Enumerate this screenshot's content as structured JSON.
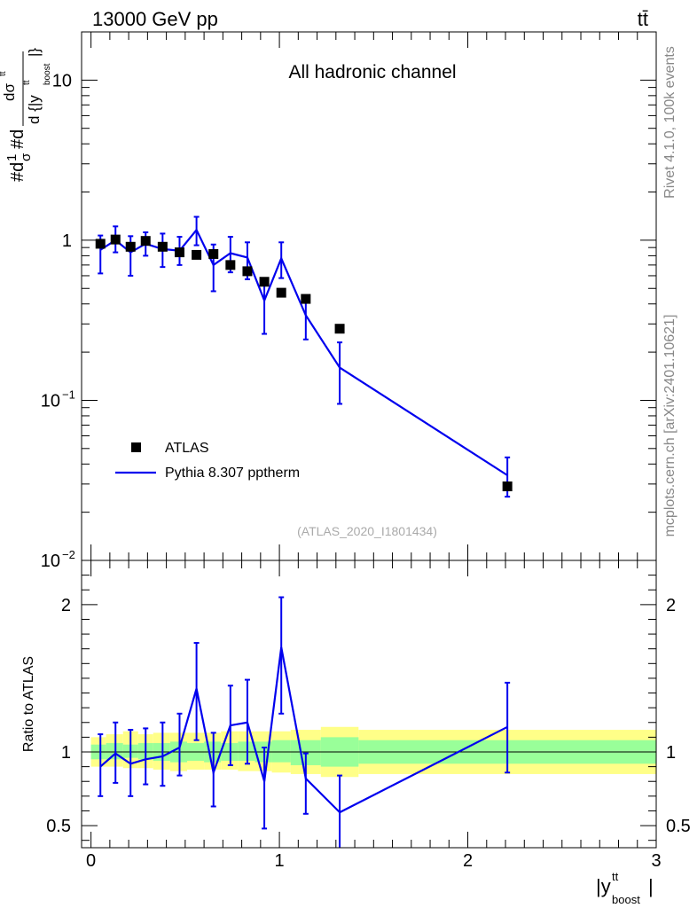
{
  "header": {
    "energy_label": "13000 GeV pp",
    "process_label": "tt̄"
  },
  "side_labels": {
    "rivet": "Rivet 4.1.0,  100k events",
    "mcplots": "mcplots.cern.ch [arXiv:2401.10621]"
  },
  "chart_data": [
    {
      "type": "scatter+line",
      "panel": "main",
      "title": "All hadronic channel",
      "analysis_id": "(ATLAS_2020_I1801434)",
      "ylabel_parts": [
        "#d",
        "1",
        "σ",
        "#d",
        "dσ",
        "tt",
        "d {|y",
        "tt",
        "boost",
        "|}"
      ],
      "xlabel": "|y^tt_boost|",
      "yscale": "log",
      "ylim": [
        0.01,
        20
      ],
      "xlim": [
        -0.05,
        3.0
      ],
      "y_ticks": [
        {
          "value": 0.01,
          "label": "10",
          "exp": "−2"
        },
        {
          "value": 0.1,
          "label": "10",
          "exp": "−1"
        },
        {
          "value": 1,
          "label": "1",
          "exp": ""
        },
        {
          "value": 10,
          "label": "10",
          "exp": ""
        }
      ],
      "legend": {
        "position": "lower-left",
        "entries": [
          {
            "name": "ATLAS",
            "marker": "square",
            "color": "#000000"
          },
          {
            "name": "Pythia 8.307 pptherm",
            "marker": "line",
            "color": "#0000ee"
          }
        ]
      },
      "data": {
        "name": "ATLAS",
        "x": [
          0.05,
          0.13,
          0.21,
          0.29,
          0.38,
          0.47,
          0.56,
          0.65,
          0.74,
          0.83,
          0.92,
          1.01,
          1.14,
          1.32,
          2.21
        ],
        "y": [
          0.95,
          1.01,
          0.91,
          0.99,
          0.91,
          0.84,
          0.81,
          0.82,
          0.7,
          0.64,
          0.55,
          0.47,
          0.43,
          0.28,
          0.029
        ]
      },
      "mc": {
        "name": "Pythia 8.307 pptherm",
        "color": "#0000ee",
        "x": [
          0.05,
          0.13,
          0.21,
          0.29,
          0.38,
          0.47,
          0.56,
          0.65,
          0.74,
          0.83,
          0.92,
          1.01,
          1.14,
          1.32,
          2.21
        ],
        "y": [
          0.87,
          1.0,
          0.84,
          0.95,
          0.88,
          0.86,
          1.16,
          0.7,
          0.83,
          0.78,
          0.42,
          0.77,
          0.34,
          0.16,
          0.034
        ],
        "yerr_low": [
          0.62,
          0.84,
          0.6,
          0.8,
          0.68,
          0.7,
          0.93,
          0.48,
          0.63,
          0.57,
          0.26,
          0.58,
          0.24,
          0.095,
          0.025
        ],
        "yerr_high": [
          1.07,
          1.22,
          1.06,
          1.12,
          1.1,
          1.05,
          1.4,
          0.94,
          1.05,
          0.97,
          0.56,
          0.97,
          0.45,
          0.23,
          0.044
        ]
      }
    },
    {
      "type": "line",
      "panel": "ratio",
      "ylabel": "Ratio to ATLAS",
      "xlabel": "|y^tt_boost|",
      "ylim": [
        0.35,
        2.3
      ],
      "xlim": [
        -0.05,
        3.0
      ],
      "reference_line": 1.0,
      "y_ticks": [
        0.5,
        1,
        2
      ],
      "x_ticks": [
        0,
        1,
        2,
        3
      ],
      "uncertainty_bands": {
        "edges": [
          0.0,
          0.08,
          0.17,
          0.25,
          0.33,
          0.42,
          0.51,
          0.6,
          0.69,
          0.78,
          0.87,
          0.96,
          1.06,
          1.22,
          1.42,
          3.0
        ],
        "inner_lo": [
          0.95,
          0.95,
          0.96,
          0.95,
          0.94,
          0.93,
          0.94,
          0.93,
          0.94,
          0.94,
          0.93,
          0.93,
          0.91,
          0.9,
          0.92
        ],
        "inner_hi": [
          1.05,
          1.06,
          1.05,
          1.06,
          1.06,
          1.07,
          1.06,
          1.07,
          1.06,
          1.07,
          1.07,
          1.08,
          1.08,
          1.1,
          1.08
        ],
        "outer_lo": [
          0.9,
          0.9,
          0.89,
          0.89,
          0.88,
          0.87,
          0.88,
          0.88,
          0.88,
          0.87,
          0.87,
          0.86,
          0.85,
          0.83,
          0.85
        ],
        "outer_hi": [
          1.1,
          1.12,
          1.14,
          1.12,
          1.13,
          1.13,
          1.13,
          1.13,
          1.14,
          1.14,
          1.14,
          1.14,
          1.15,
          1.17,
          1.15
        ],
        "inner_color": "#99ff99",
        "outer_color": "#ffff88"
      },
      "mc": {
        "name": "Pythia 8.307 pptherm",
        "color": "#0000ee",
        "x": [
          0.05,
          0.13,
          0.21,
          0.29,
          0.38,
          0.47,
          0.56,
          0.65,
          0.74,
          0.83,
          0.92,
          1.01,
          1.14,
          1.32,
          2.21
        ],
        "y": [
          0.9,
          0.99,
          0.92,
          0.95,
          0.97,
          1.03,
          1.43,
          0.86,
          1.18,
          1.2,
          0.8,
          1.71,
          0.82,
          0.59,
          1.17
        ],
        "yerr_low": [
          0.7,
          0.79,
          0.7,
          0.78,
          0.77,
          0.84,
          1.08,
          0.63,
          0.91,
          0.92,
          0.48,
          1.26,
          0.58,
          0.34,
          0.86
        ],
        "yerr_high": [
          1.12,
          1.2,
          1.15,
          1.16,
          1.2,
          1.26,
          1.74,
          1.13,
          1.45,
          1.49,
          1.03,
          2.05,
          0.99,
          0.84,
          1.47
        ]
      }
    }
  ]
}
